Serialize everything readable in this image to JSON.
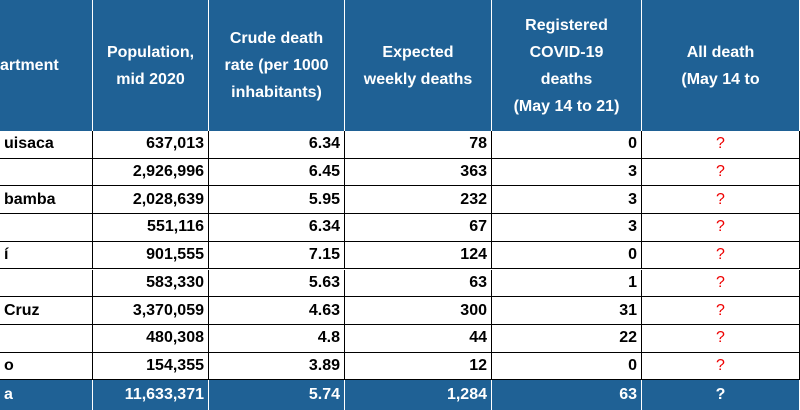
{
  "table": {
    "header": [
      [
        "artment"
      ],
      [
        "Population,",
        "mid 2020"
      ],
      [
        "Crude death",
        "rate (per 1000",
        "inhabitants)"
      ],
      [
        "Expected",
        "weekly deaths"
      ],
      [
        "Registered",
        "COVID-19",
        "deaths",
        "(May 14 to 21)"
      ],
      [
        "All death",
        "(May 14 to"
      ]
    ],
    "rows": [
      [
        "uisaca",
        "637,013",
        "6.34",
        "78",
        "0",
        "?"
      ],
      [
        null,
        "2,926,996",
        "6.45",
        "363",
        "3",
        "?"
      ],
      [
        "bamba",
        "2,028,639",
        "5.95",
        "232",
        "3",
        "?"
      ],
      [
        null,
        "551,116",
        "6.34",
        "67",
        "3",
        "?"
      ],
      [
        "í",
        "901,555",
        "7.15",
        "124",
        "0",
        "?"
      ],
      [
        null,
        "583,330",
        "5.63",
        "63",
        "1",
        "?"
      ],
      [
        "Cruz",
        "3,370,059",
        "4.63",
        "300",
        "31",
        "?"
      ],
      [
        null,
        "480,308",
        "4.8",
        "44",
        "22",
        "?"
      ],
      [
        "o",
        "154,355",
        "3.89",
        "12",
        "0",
        "?"
      ]
    ],
    "total": [
      "a",
      "11,633,371",
      "5.74",
      "1,284",
      "63",
      "?"
    ]
  }
}
